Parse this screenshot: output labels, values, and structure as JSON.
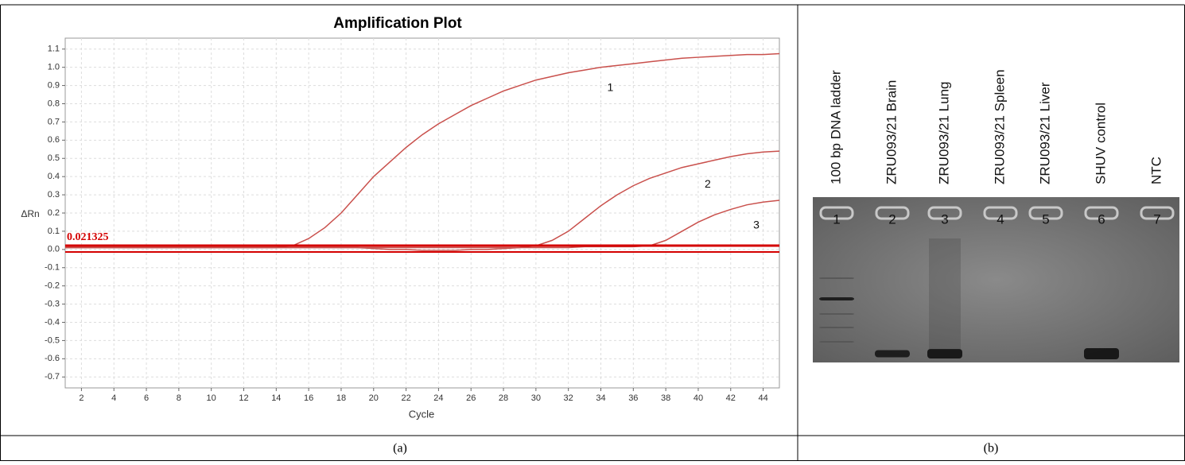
{
  "chart_data": {
    "type": "line",
    "title": "Amplification Plot",
    "x_label": "Cycle",
    "y_label": "ΔRn",
    "x": [
      1,
      2,
      3,
      4,
      5,
      6,
      7,
      8,
      9,
      10,
      11,
      12,
      13,
      14,
      15,
      16,
      17,
      18,
      19,
      20,
      21,
      22,
      23,
      24,
      25,
      26,
      27,
      28,
      29,
      30,
      31,
      32,
      33,
      34,
      35,
      36,
      37,
      38,
      39,
      40,
      41,
      42,
      43,
      44,
      45
    ],
    "series": [
      {
        "name": "1",
        "color": "#c9504c",
        "values": [
          0.01,
          0.01,
          0.01,
          0.01,
          0.01,
          0.01,
          0.01,
          0.01,
          0.01,
          0.01,
          0.01,
          0.01,
          0.01,
          0.01,
          0.02,
          0.06,
          0.12,
          0.2,
          0.3,
          0.4,
          0.48,
          0.56,
          0.63,
          0.69,
          0.74,
          0.79,
          0.83,
          0.87,
          0.9,
          0.93,
          0.95,
          0.97,
          0.985,
          1.0,
          1.01,
          1.02,
          1.03,
          1.04,
          1.05,
          1.055,
          1.06,
          1.065,
          1.07,
          1.07,
          1.075
        ]
      },
      {
        "name": "2",
        "color": "#c9504c",
        "values": [
          0.01,
          0.01,
          0.01,
          0.01,
          0.01,
          0.01,
          0.01,
          0.01,
          0.01,
          0.01,
          0.01,
          0.01,
          0.01,
          0.01,
          0.01,
          0.01,
          0.01,
          0.01,
          0.01,
          0.005,
          0.0,
          0.0,
          -0.005,
          -0.005,
          -0.005,
          0.0,
          0.0,
          0.005,
          0.01,
          0.02,
          0.05,
          0.1,
          0.17,
          0.24,
          0.3,
          0.35,
          0.39,
          0.42,
          0.45,
          0.47,
          0.49,
          0.51,
          0.525,
          0.535,
          0.54
        ]
      },
      {
        "name": "3",
        "color": "#c9504c",
        "values": [
          0.01,
          0.01,
          0.01,
          0.01,
          0.01,
          0.01,
          0.01,
          0.01,
          0.01,
          0.01,
          0.01,
          0.01,
          0.01,
          0.01,
          0.01,
          0.01,
          0.01,
          0.01,
          0.01,
          0.01,
          0.01,
          0.01,
          0.01,
          0.01,
          0.01,
          0.01,
          0.01,
          0.01,
          0.01,
          0.01,
          0.01,
          0.01,
          0.015,
          0.015,
          0.015,
          0.015,
          0.02,
          0.05,
          0.1,
          0.15,
          0.19,
          0.22,
          0.245,
          0.26,
          0.27
        ]
      }
    ],
    "threshold": 0.021325,
    "threshold_color": "#d40000",
    "xlim": [
      1,
      45
    ],
    "xticks": [
      2,
      4,
      6,
      8,
      10,
      12,
      14,
      16,
      18,
      20,
      22,
      24,
      26,
      28,
      30,
      32,
      34,
      36,
      38,
      40,
      42,
      44
    ],
    "ylim": [
      -0.76,
      1.16
    ],
    "yticks": [
      1.1,
      {
        "value": 1,
        "label": "1.0"
      },
      0.9,
      0.8,
      0.7,
      0.6,
      0.5,
      0.4,
      0.3,
      0.2,
      0.1,
      {
        "value": 0,
        "label": "0.0"
      },
      -0.1,
      -0.2,
      -0.3,
      -0.4,
      -0.5,
      -0.6,
      -0.7
    ],
    "grid": true
  },
  "gel": {
    "lane_labels": [
      "100 bp DNA ladder",
      "ZRU093/21 Brain",
      "ZRU093/21 Lung",
      "ZRU093/21  Spleen",
      "ZRU093/21 Liver",
      "SHUV control",
      "NTC"
    ],
    "lane_numbers": [
      "1",
      "2",
      "3",
      "4",
      "5",
      "6",
      "7"
    ]
  },
  "captions": [
    "(a)",
    "(b)"
  ]
}
